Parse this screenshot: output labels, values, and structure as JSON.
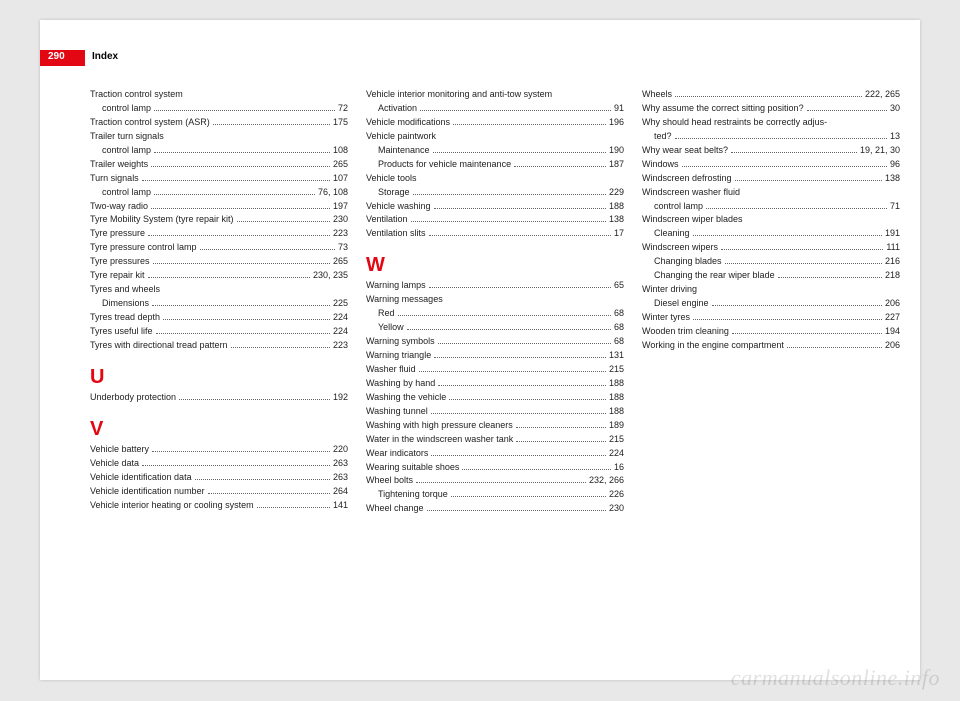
{
  "page_number": "290",
  "header": "Index",
  "watermark": "carmanualsonline.info",
  "columns": [
    {
      "items": [
        {
          "type": "entry",
          "label": "Traction control system",
          "page": "",
          "noline": true
        },
        {
          "type": "entry",
          "sub": true,
          "label": "control lamp",
          "page": "72"
        },
        {
          "type": "entry",
          "label": "Traction control system (ASR)",
          "page": "175"
        },
        {
          "type": "entry",
          "label": "Trailer turn signals",
          "page": "",
          "noline": true
        },
        {
          "type": "entry",
          "sub": true,
          "label": "control lamp",
          "page": "108"
        },
        {
          "type": "entry",
          "label": "Trailer weights",
          "page": "265"
        },
        {
          "type": "entry",
          "label": "Turn signals",
          "page": "107"
        },
        {
          "type": "entry",
          "sub": true,
          "label": "control lamp",
          "page": "76, 108"
        },
        {
          "type": "entry",
          "label": "Two-way radio",
          "page": "197"
        },
        {
          "type": "entry",
          "label": "Tyre Mobility System (tyre repair kit)",
          "page": "230"
        },
        {
          "type": "entry",
          "label": "Tyre pressure",
          "page": "223"
        },
        {
          "type": "entry",
          "label": "Tyre pressure control lamp",
          "page": "73"
        },
        {
          "type": "entry",
          "label": "Tyre pressures",
          "page": "265"
        },
        {
          "type": "entry",
          "label": "Tyre repair kit",
          "page": "230, 235"
        },
        {
          "type": "entry",
          "label": "Tyres and wheels",
          "page": "",
          "noline": true
        },
        {
          "type": "entry",
          "sub": true,
          "label": "Dimensions",
          "page": "225"
        },
        {
          "type": "entry",
          "label": "Tyres tread depth",
          "page": "224"
        },
        {
          "type": "entry",
          "label": "Tyres useful life",
          "page": "224"
        },
        {
          "type": "entry",
          "label": "Tyres with directional tread pattern",
          "page": "223"
        },
        {
          "type": "letter",
          "text": "U"
        },
        {
          "type": "entry",
          "label": "Underbody protection",
          "page": "192"
        },
        {
          "type": "letter",
          "text": "V"
        },
        {
          "type": "entry",
          "label": "Vehicle battery",
          "page": "220"
        },
        {
          "type": "entry",
          "label": "Vehicle data",
          "page": "263"
        },
        {
          "type": "entry",
          "label": "Vehicle identification data",
          "page": "263"
        },
        {
          "type": "entry",
          "label": "Vehicle identification number",
          "page": "264"
        },
        {
          "type": "entry",
          "label": "Vehicle interior heating or cooling system",
          "page": "141"
        }
      ]
    },
    {
      "items": [
        {
          "type": "entry",
          "label": "Vehicle interior monitoring and anti-tow system",
          "page": "",
          "noline": true
        },
        {
          "type": "entry",
          "sub": true,
          "label": "Activation",
          "page": "91"
        },
        {
          "type": "entry",
          "label": "Vehicle modifications",
          "page": "196"
        },
        {
          "type": "entry",
          "label": "Vehicle paintwork",
          "page": "",
          "noline": true
        },
        {
          "type": "entry",
          "sub": true,
          "label": "Maintenance",
          "page": "190"
        },
        {
          "type": "entry",
          "sub": true,
          "label": "Products for vehicle maintenance",
          "page": "187"
        },
        {
          "type": "entry",
          "label": "Vehicle tools",
          "page": "",
          "noline": true
        },
        {
          "type": "entry",
          "sub": true,
          "label": "Storage",
          "page": "229"
        },
        {
          "type": "entry",
          "label": "Vehicle washing",
          "page": "188"
        },
        {
          "type": "entry",
          "label": "Ventilation",
          "page": "138"
        },
        {
          "type": "entry",
          "label": "Ventilation slits",
          "page": "17"
        },
        {
          "type": "letter",
          "text": "W"
        },
        {
          "type": "entry",
          "label": "Warning lamps",
          "page": "65"
        },
        {
          "type": "entry",
          "label": "Warning messages",
          "page": "",
          "noline": true
        },
        {
          "type": "entry",
          "sub": true,
          "label": "Red",
          "page": "68"
        },
        {
          "type": "entry",
          "sub": true,
          "label": "Yellow",
          "page": "68"
        },
        {
          "type": "entry",
          "label": "Warning symbols",
          "page": "68"
        },
        {
          "type": "entry",
          "label": "Warning triangle",
          "page": "131"
        },
        {
          "type": "entry",
          "label": "Washer fluid",
          "page": "215"
        },
        {
          "type": "entry",
          "label": "Washing by hand",
          "page": "188"
        },
        {
          "type": "entry",
          "label": "Washing the vehicle",
          "page": "188"
        },
        {
          "type": "entry",
          "label": "Washing tunnel",
          "page": "188"
        },
        {
          "type": "entry",
          "label": "Washing with high pressure cleaners",
          "page": "189"
        },
        {
          "type": "entry",
          "label": "Water in the windscreen washer tank",
          "page": "215"
        },
        {
          "type": "entry",
          "label": "Wear indicators",
          "page": "224"
        },
        {
          "type": "entry",
          "label": "Wearing suitable shoes",
          "page": "16"
        },
        {
          "type": "entry",
          "label": "Wheel bolts",
          "page": "232, 266"
        },
        {
          "type": "entry",
          "sub": true,
          "label": "Tightening torque",
          "page": "226"
        },
        {
          "type": "entry",
          "label": "Wheel change",
          "page": "230"
        }
      ]
    },
    {
      "items": [
        {
          "type": "entry",
          "label": "Wheels",
          "page": "222, 265"
        },
        {
          "type": "entry",
          "label": "Why assume the correct sitting position?",
          "page": "30"
        },
        {
          "type": "entry",
          "label": "Why should head restraints be correctly adjus-",
          "page": "",
          "noline": true
        },
        {
          "type": "entry",
          "sub": true,
          "label": "ted?",
          "page": "13"
        },
        {
          "type": "entry",
          "label": "Why wear seat belts?",
          "page": "19, 21, 30"
        },
        {
          "type": "entry",
          "label": "Windows",
          "page": "96"
        },
        {
          "type": "entry",
          "label": "Windscreen defrosting",
          "page": "138"
        },
        {
          "type": "entry",
          "label": "Windscreen washer fluid",
          "page": "",
          "noline": true
        },
        {
          "type": "entry",
          "sub": true,
          "label": "control lamp",
          "page": "71"
        },
        {
          "type": "entry",
          "label": "Windscreen wiper blades",
          "page": "",
          "noline": true
        },
        {
          "type": "entry",
          "sub": true,
          "label": "Cleaning",
          "page": "191"
        },
        {
          "type": "entry",
          "label": "Windscreen wipers",
          "page": "111"
        },
        {
          "type": "entry",
          "sub": true,
          "label": "Changing blades",
          "page": "216"
        },
        {
          "type": "entry",
          "sub": true,
          "label": "Changing the rear wiper blade",
          "page": "218"
        },
        {
          "type": "entry",
          "label": "Winter driving",
          "page": "",
          "noline": true
        },
        {
          "type": "entry",
          "sub": true,
          "label": "Diesel engine",
          "page": "206"
        },
        {
          "type": "entry",
          "label": "Winter tyres",
          "page": "227"
        },
        {
          "type": "entry",
          "label": "Wooden trim cleaning",
          "page": "194"
        },
        {
          "type": "entry",
          "label": "Working in the engine compartment",
          "page": "206"
        }
      ]
    }
  ]
}
